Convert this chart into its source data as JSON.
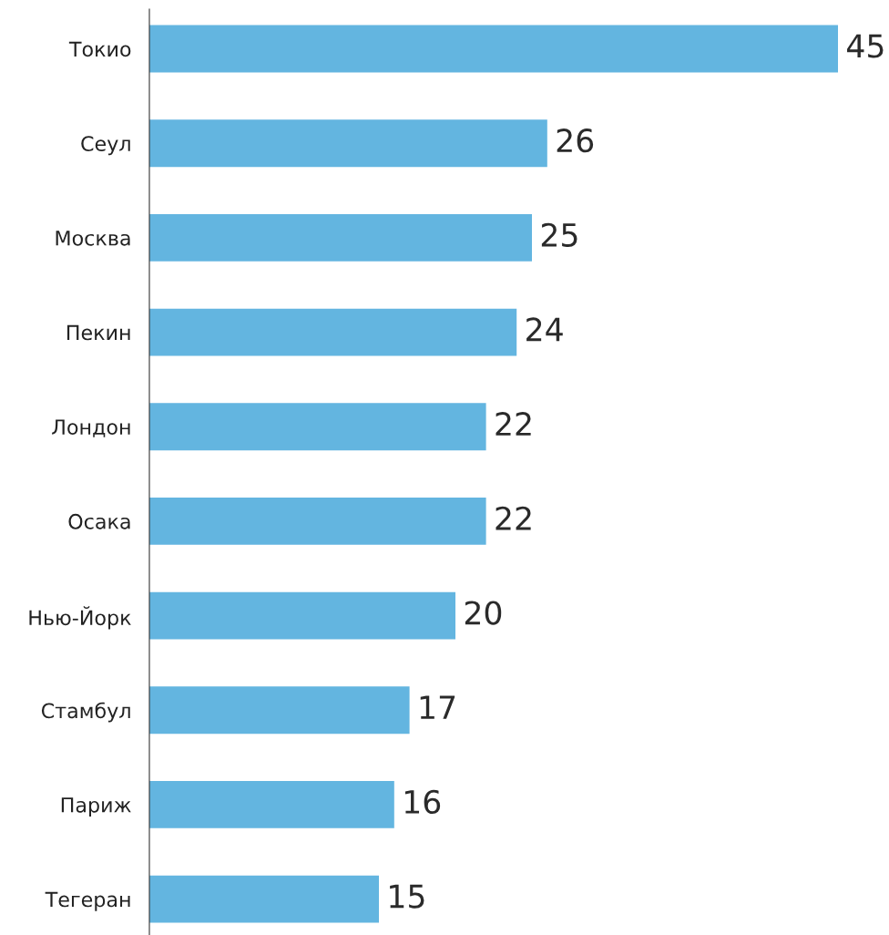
{
  "chart_data": {
    "type": "bar",
    "orientation": "horizontal",
    "categories": [
      "Токио",
      "Сеул",
      "Москва",
      "Пекин",
      "Лондон",
      "Осака",
      "Нью-Йорк",
      "Стамбул",
      "Париж",
      "Тегеран"
    ],
    "values": [
      45,
      26,
      25,
      24,
      22,
      22,
      20,
      17,
      16,
      15
    ],
    "color": "#63b5e0",
    "data_labels": true,
    "grid": false,
    "legend": false,
    "tick_labels": "y"
  }
}
